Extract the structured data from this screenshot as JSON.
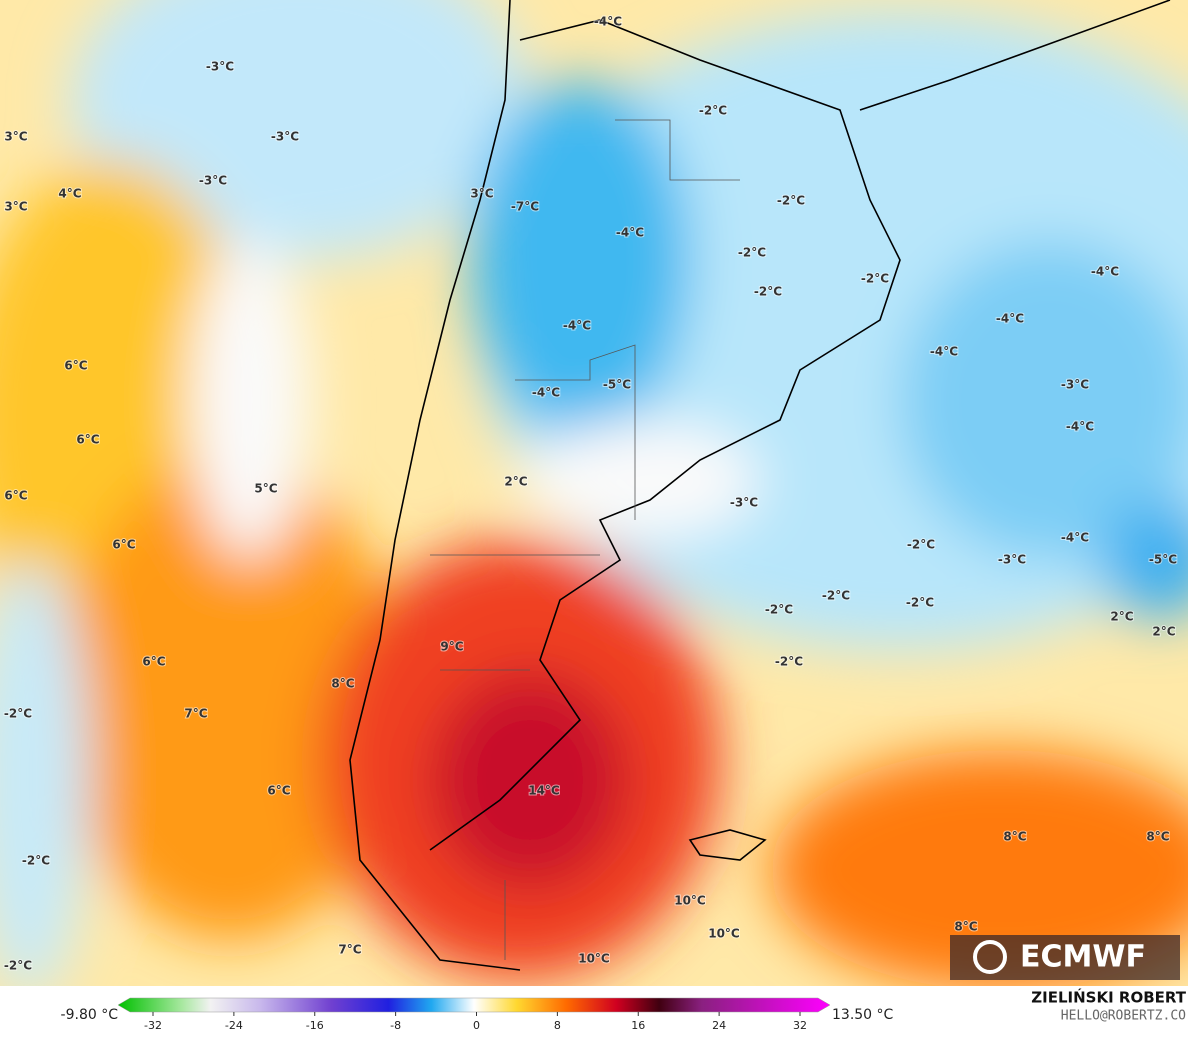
{
  "map_labels": [
    "-4°C",
    "-3°C",
    "3°C",
    "-3°C",
    "-2°C",
    "-3°C",
    "4°C",
    "3°C",
    "3°C",
    "-7°C",
    "-4°C",
    "-2°C",
    "-2°C",
    "-2°C",
    "-4°C",
    "-2°C",
    "-4°C",
    "-4°C",
    "-4°C",
    "6°C",
    "-5°C",
    "-4°C",
    "-3°C",
    "6°C",
    "-4°C",
    "2°C",
    "5°C",
    "6°C",
    "-3°C",
    "6°C",
    "-2°C",
    "-4°C",
    "-3°C",
    "-5°C",
    "-2°C",
    "-2°C",
    "-2°C",
    "2°C",
    "2°C",
    "9°C",
    "6°C",
    "-2°C",
    "8°C",
    "-2°C",
    "7°C",
    "6°C",
    "14°C",
    "8°C",
    "8°C",
    "-2°C",
    "10°C",
    "8°C",
    "10°C",
    "7°C",
    "10°C",
    "-2°C"
  ],
  "logo": "ECMWF",
  "colorbar": {
    "min_label": "-9.80 °C",
    "max_label": "13.50 °C",
    "ticks": [
      -32,
      -24,
      -16,
      -8,
      0,
      8,
      16,
      24,
      32
    ]
  },
  "credit": {
    "name": "ZIELIŃSKI ROBERT",
    "email": "HELLO@ROBERTZ.CO"
  }
}
